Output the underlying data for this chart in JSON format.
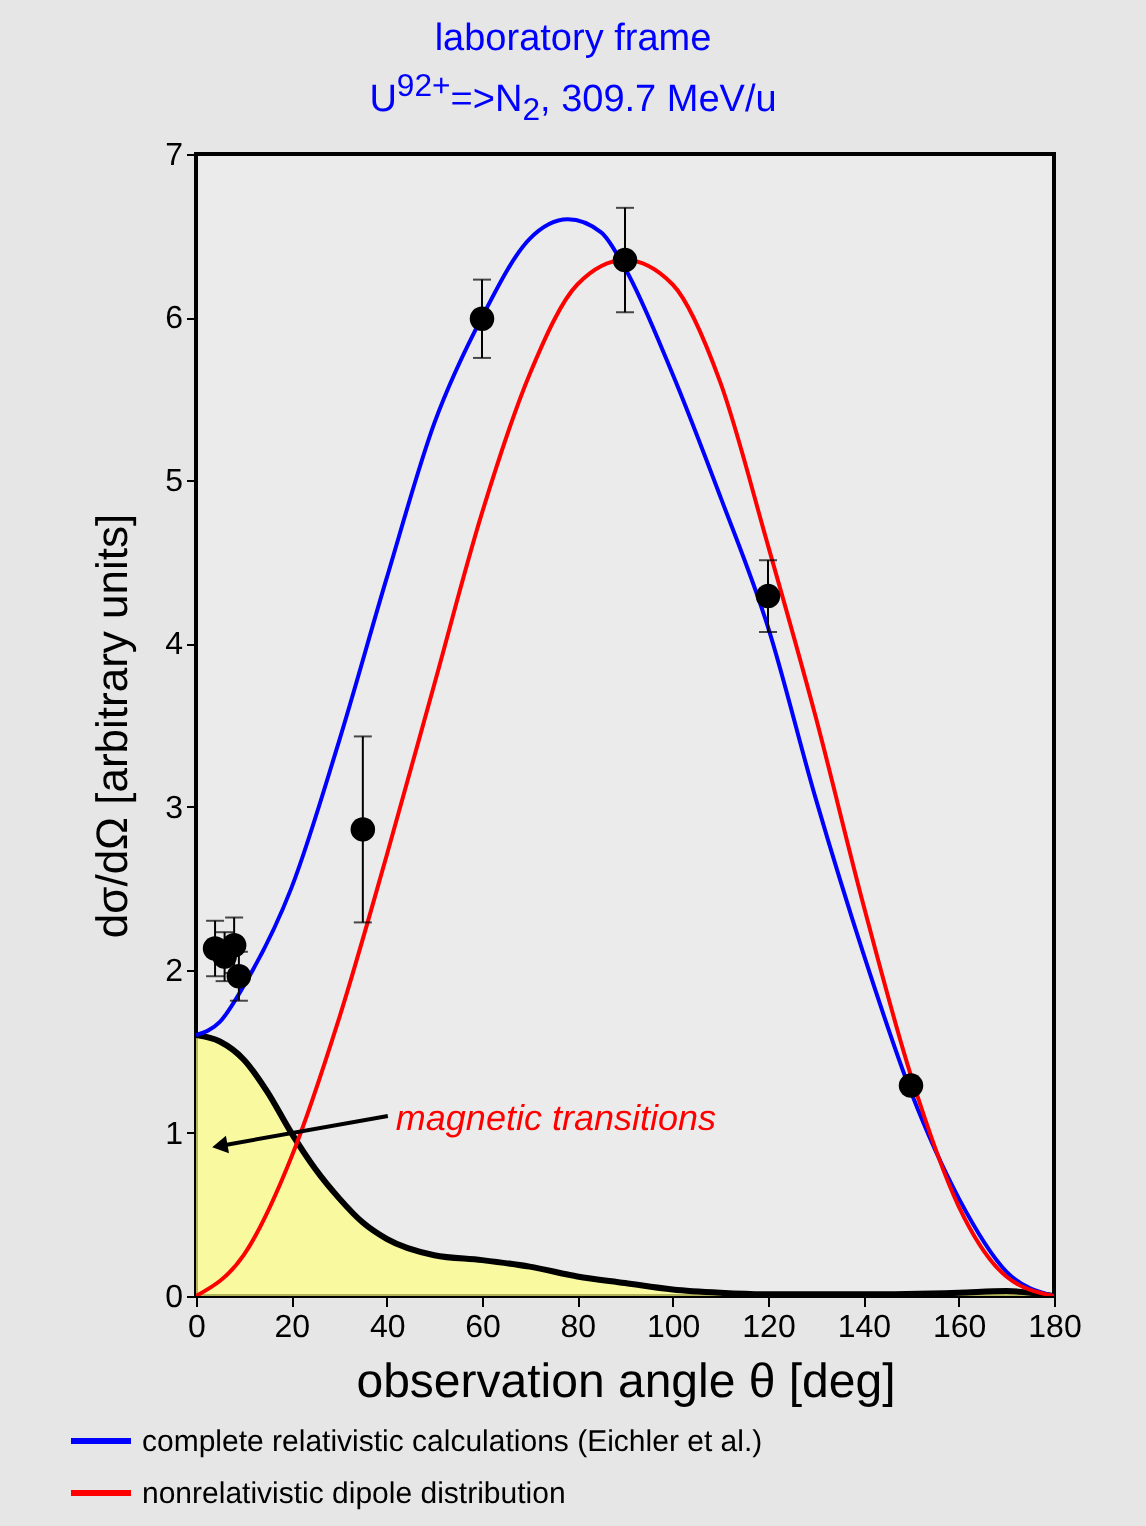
{
  "chart_data": {
    "type": "line",
    "title": "laboratory frame",
    "subtitle": "U$^{92+}$=>N$_{2}$, 309.7 MeV/u",
    "xlabel": "observation angle θ [deg]",
    "ylabel": "dσ/dΩ [arbitrary units]",
    "xlim": [
      0,
      180
    ],
    "xticks": [
      0,
      20,
      40,
      60,
      80,
      100,
      120,
      140,
      160,
      180
    ],
    "ylim": [
      0,
      7
    ],
    "yticks": [
      0,
      1,
      2,
      3,
      4,
      5,
      6,
      7
    ],
    "legend": "bottom",
    "annotations": [
      {
        "text": "magnetic transitions",
        "x": 5,
        "y": 0.92
      }
    ],
    "series": [
      {
        "type": "area",
        "color": "#ffff80",
        "x": [
          0,
          5,
          10,
          15,
          20,
          25,
          30,
          35,
          40,
          50,
          60,
          70,
          80,
          90,
          100,
          110,
          120,
          140,
          160,
          170,
          180
        ],
        "values": [
          1.6,
          1.56,
          1.45,
          1.25,
          1.0,
          0.78,
          0.6,
          0.45,
          0.35,
          0.25,
          0.22,
          0.18,
          0.12,
          0.08,
          0.04,
          0.02,
          0.01,
          0.01,
          0.02,
          0.03,
          0
        ]
      },
      {
        "name": "complete relativistic calculations (Eichler et al.)",
        "color": "#0000ff",
        "x": [
          0,
          5,
          10,
          20,
          30,
          40,
          50,
          60,
          70,
          78,
          85,
          90,
          100,
          110,
          120,
          130,
          140,
          150,
          160,
          170,
          180
        ],
        "values": [
          1.6,
          1.68,
          1.9,
          2.5,
          3.4,
          4.4,
          5.35,
          6.0,
          6.48,
          6.6,
          6.52,
          6.3,
          5.65,
          4.9,
          4.1,
          3.05,
          2.1,
          1.25,
          0.6,
          0.15,
          0
        ]
      },
      {
        "name": "nonrelativistic dipole distribution",
        "color": "#ff0000",
        "x": [
          0,
          10,
          20,
          30,
          40,
          50,
          60,
          70,
          80,
          90,
          100,
          110,
          120,
          130,
          140,
          150,
          160,
          170,
          180
        ],
        "values": [
          0,
          0.25,
          0.85,
          1.7,
          2.7,
          3.75,
          4.8,
          5.65,
          6.2,
          6.35,
          6.2,
          5.6,
          4.6,
          3.55,
          2.4,
          1.35,
          0.55,
          0.12,
          0
        ]
      },
      {
        "type": "scatter",
        "color": "#000000",
        "x": [
          4,
          6,
          8,
          9,
          35,
          60,
          90,
          120,
          150
        ],
        "values": [
          2.13,
          2.08,
          2.15,
          1.96,
          2.86,
          5.99,
          6.35,
          4.29,
          1.29
        ],
        "errors": [
          0.17,
          0.15,
          0.17,
          0.15,
          0.57,
          0.24,
          0.32,
          0.22,
          null
        ]
      }
    ]
  }
}
